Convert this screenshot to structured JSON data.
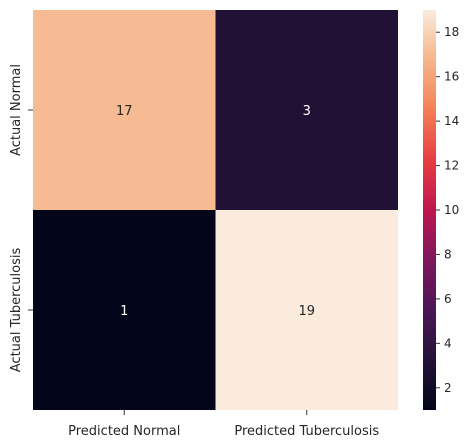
{
  "chart_data": {
    "type": "heatmap",
    "title": "",
    "rows": [
      "Actual Normal",
      "Actual Tuberculosis"
    ],
    "columns": [
      "Predicted Normal",
      "Predicted Tuberculosis"
    ],
    "values": [
      [
        17,
        3
      ],
      [
        1,
        19
      ]
    ],
    "colorbar": {
      "colormap": "rocket",
      "range": [
        1,
        19
      ],
      "ticks": [
        2,
        4,
        6,
        8,
        10,
        12,
        14,
        16,
        18
      ]
    },
    "annotations": true,
    "grid": false
  }
}
